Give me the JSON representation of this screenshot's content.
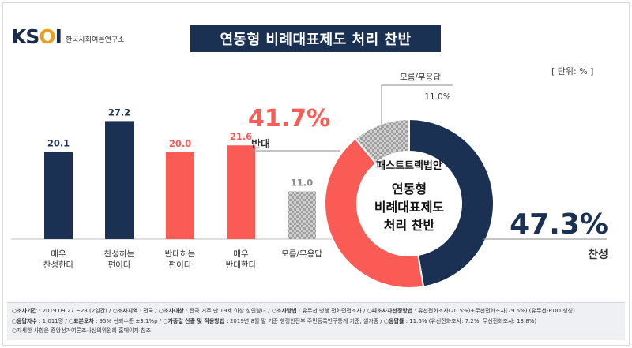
{
  "header": {
    "logo_text": "KSOI",
    "logo_subtitle": "한국사회여론연구소",
    "title": "연동형 비례대표제도 처리 찬반",
    "unit": "[ 단위: % ]"
  },
  "colors": {
    "navy": "#1a3154",
    "coral": "#fb5b55",
    "gray_pattern": "#b3b3b3",
    "title_bg": "#1a3154"
  },
  "chart_data": [
    {
      "type": "bar",
      "categories": [
        "매우\n찬성한다",
        "찬성하는\n편이다",
        "반대하는\n편이다",
        "매우\n반대한다",
        "모름/무응답"
      ],
      "values": [
        20.1,
        27.2,
        20.0,
        21.6,
        11.0
      ],
      "bar_colors": [
        "#1a3154",
        "#1a3154",
        "#fb5b55",
        "#fb5b55",
        "pattern"
      ],
      "label_colors": [
        "#1a3154",
        "#1a3154",
        "#fb5b55",
        "#fb5b55",
        "#888888"
      ],
      "ylim": [
        0,
        30
      ]
    },
    {
      "type": "pie",
      "donut": true,
      "center_text": [
        "패스트트랙법안",
        "연동형",
        "비례대표제도",
        "처리 찬반"
      ],
      "slices": [
        {
          "name": "찬성",
          "value": 47.3,
          "color": "#1a3154",
          "label_value": "47.3%",
          "label_color": "#1a3154"
        },
        {
          "name": "반대",
          "value": 41.7,
          "color": "#fb5b55",
          "label_value": "41.7%",
          "label_color": "#fb5b55"
        },
        {
          "name": "모름/무응답",
          "value": 11.0,
          "color": "pattern",
          "label_value": "11.0%",
          "label_color": "#333333"
        }
      ]
    }
  ],
  "footer": {
    "line1": [
      {
        "k": "○조사기간",
        "v": " : 2019.09.27.~28.(2일간)  /  "
      },
      {
        "k": "○조사지역",
        "v": " : 전국  /  "
      },
      {
        "k": "○조사대상",
        "v": " : 전국 거주 만 19세 이상 성인남녀  /  "
      },
      {
        "k": "○조사방법",
        "v": " : 유무선 병행 전화면접조사  /  "
      },
      {
        "k": "○피조사자선정방법",
        "v": " : 유선전화조사(20.5%)+무선전화조사(79.5%) (유무선-RDD 생성)"
      }
    ],
    "line2": [
      {
        "k": "○응답자수",
        "v": " : 1,011명  /  "
      },
      {
        "k": "○표본오차",
        "v": " : 95% 신뢰수준 ±3.1%p  /  "
      },
      {
        "k": "○가중값 산출 및 적용방법",
        "v": " : 2019년 8월 말 기준 행정안전부 주민등록인구통계 기준, 셀가중  /  "
      },
      {
        "k": "○응답률",
        "v": " : 11.6% (유선전화조사: 7.2%, 무선전화조사: 13.8%)"
      }
    ],
    "line3": "○자세한 사항은 중앙선거여론조사심의위원회 홈페이지 참조"
  }
}
